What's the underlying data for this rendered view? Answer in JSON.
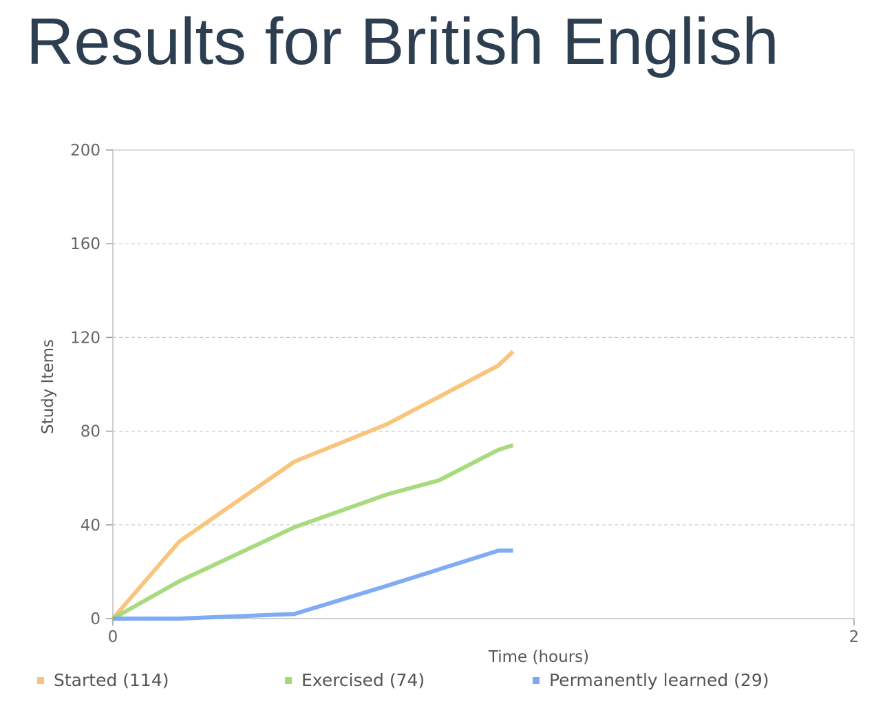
{
  "page": {
    "title": "Results for British English"
  },
  "chart_data": {
    "type": "line",
    "xlabel": "Time (hours)",
    "ylabel": "Study Items",
    "xlim": [
      0,
      2
    ],
    "ylim": [
      0,
      200
    ],
    "x_ticks": [
      0,
      2
    ],
    "y_ticks": [
      0,
      40,
      80,
      120,
      160,
      200
    ],
    "grid": "horizontal dashed",
    "legend_position": "bottom",
    "series": [
      {
        "name": "Started (114)",
        "color": "#f9c276",
        "points": [
          [
            0,
            0
          ],
          [
            0.18,
            33
          ],
          [
            0.49,
            67
          ],
          [
            0.74,
            83
          ],
          [
            1.04,
            108
          ],
          [
            1.08,
            114
          ]
        ]
      },
      {
        "name": "Exercised (74)",
        "color": "#a3d977",
        "points": [
          [
            0,
            0
          ],
          [
            0.18,
            16
          ],
          [
            0.49,
            39
          ],
          [
            0.74,
            53
          ],
          [
            0.88,
            59
          ],
          [
            1.04,
            72
          ],
          [
            1.08,
            74
          ]
        ]
      },
      {
        "name": "Permanently learned (29)",
        "color": "#7ba7f5",
        "points": [
          [
            0,
            0
          ],
          [
            0.18,
            0
          ],
          [
            0.49,
            2
          ],
          [
            0.74,
            14
          ],
          [
            1.04,
            29
          ],
          [
            1.08,
            29
          ]
        ]
      }
    ]
  }
}
